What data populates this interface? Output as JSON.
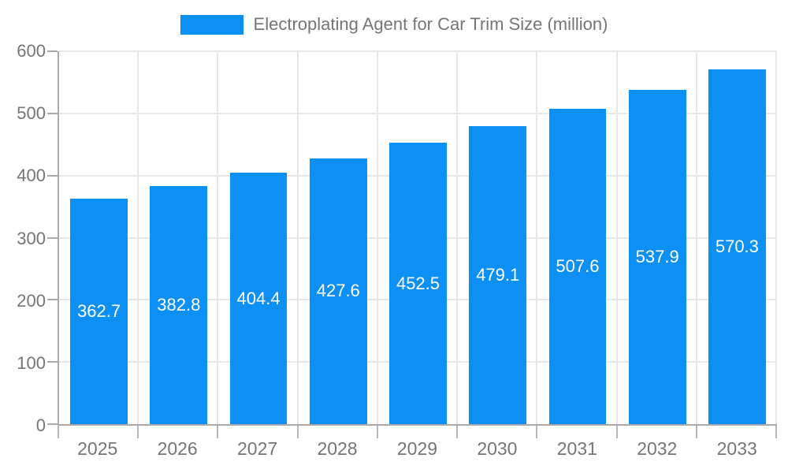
{
  "colors": {
    "bar": "#0d90f6",
    "grid": "#e7e7e7",
    "axis": "#aaaaaa",
    "tick_text": "#757575",
    "value_label_text": "#ffffff",
    "background": "#ffffff"
  },
  "chart_data": {
    "type": "bar",
    "title": "Electroplating Agent for Car Trim Size (million)",
    "categories": [
      "2025",
      "2026",
      "2027",
      "2028",
      "2029",
      "2030",
      "2031",
      "2032",
      "2033"
    ],
    "series": [
      {
        "name": "Electroplating Agent for Car Trim Size (million)",
        "values": [
          362.7,
          382.8,
          404.4,
          427.6,
          452.5,
          479.1,
          507.6,
          537.9,
          570.3
        ]
      }
    ],
    "value_labels": [
      362.7,
      382.8,
      404.4,
      427.6,
      452.5,
      479.1,
      507.6,
      537.9,
      570.3
    ],
    "value_label_position": "inside-center",
    "xlabel": "",
    "ylabel": "",
    "ylim": [
      0,
      600
    ],
    "yticks": [
      0,
      100,
      200,
      300,
      400,
      500,
      600
    ],
    "grid": true,
    "legend_position": "top"
  }
}
